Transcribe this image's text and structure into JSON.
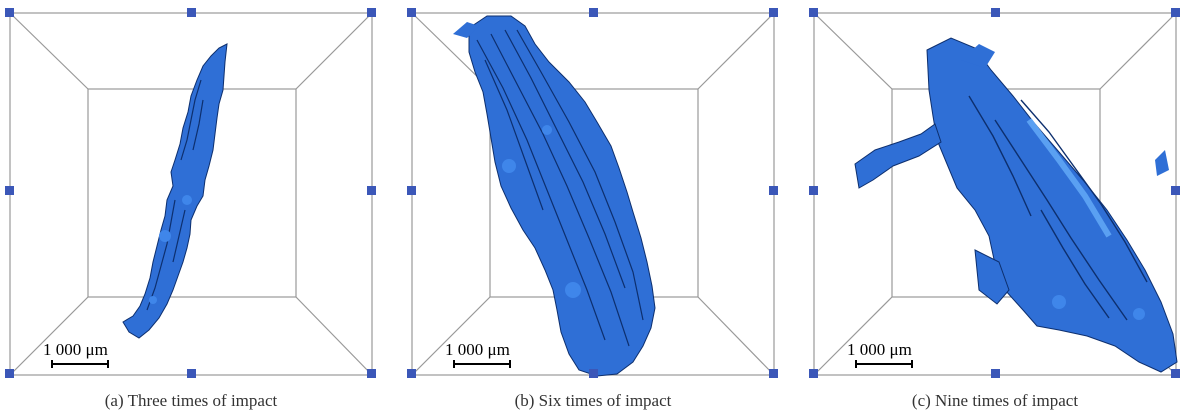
{
  "panels": [
    {
      "id": "a",
      "caption": "(a) Three times of impact",
      "scale_label": "1 000 μm"
    },
    {
      "id": "b",
      "caption": "(b) Six times of impact",
      "scale_label": "1 000 μm"
    },
    {
      "id": "c",
      "caption": "(c) Nine times of impact",
      "scale_label": "1 000 μm"
    }
  ],
  "colors": {
    "crack": "#2f6fd6",
    "crack_shadow": "#0d2f6e",
    "frame": "#888888",
    "handle": "#3b57b8"
  }
}
